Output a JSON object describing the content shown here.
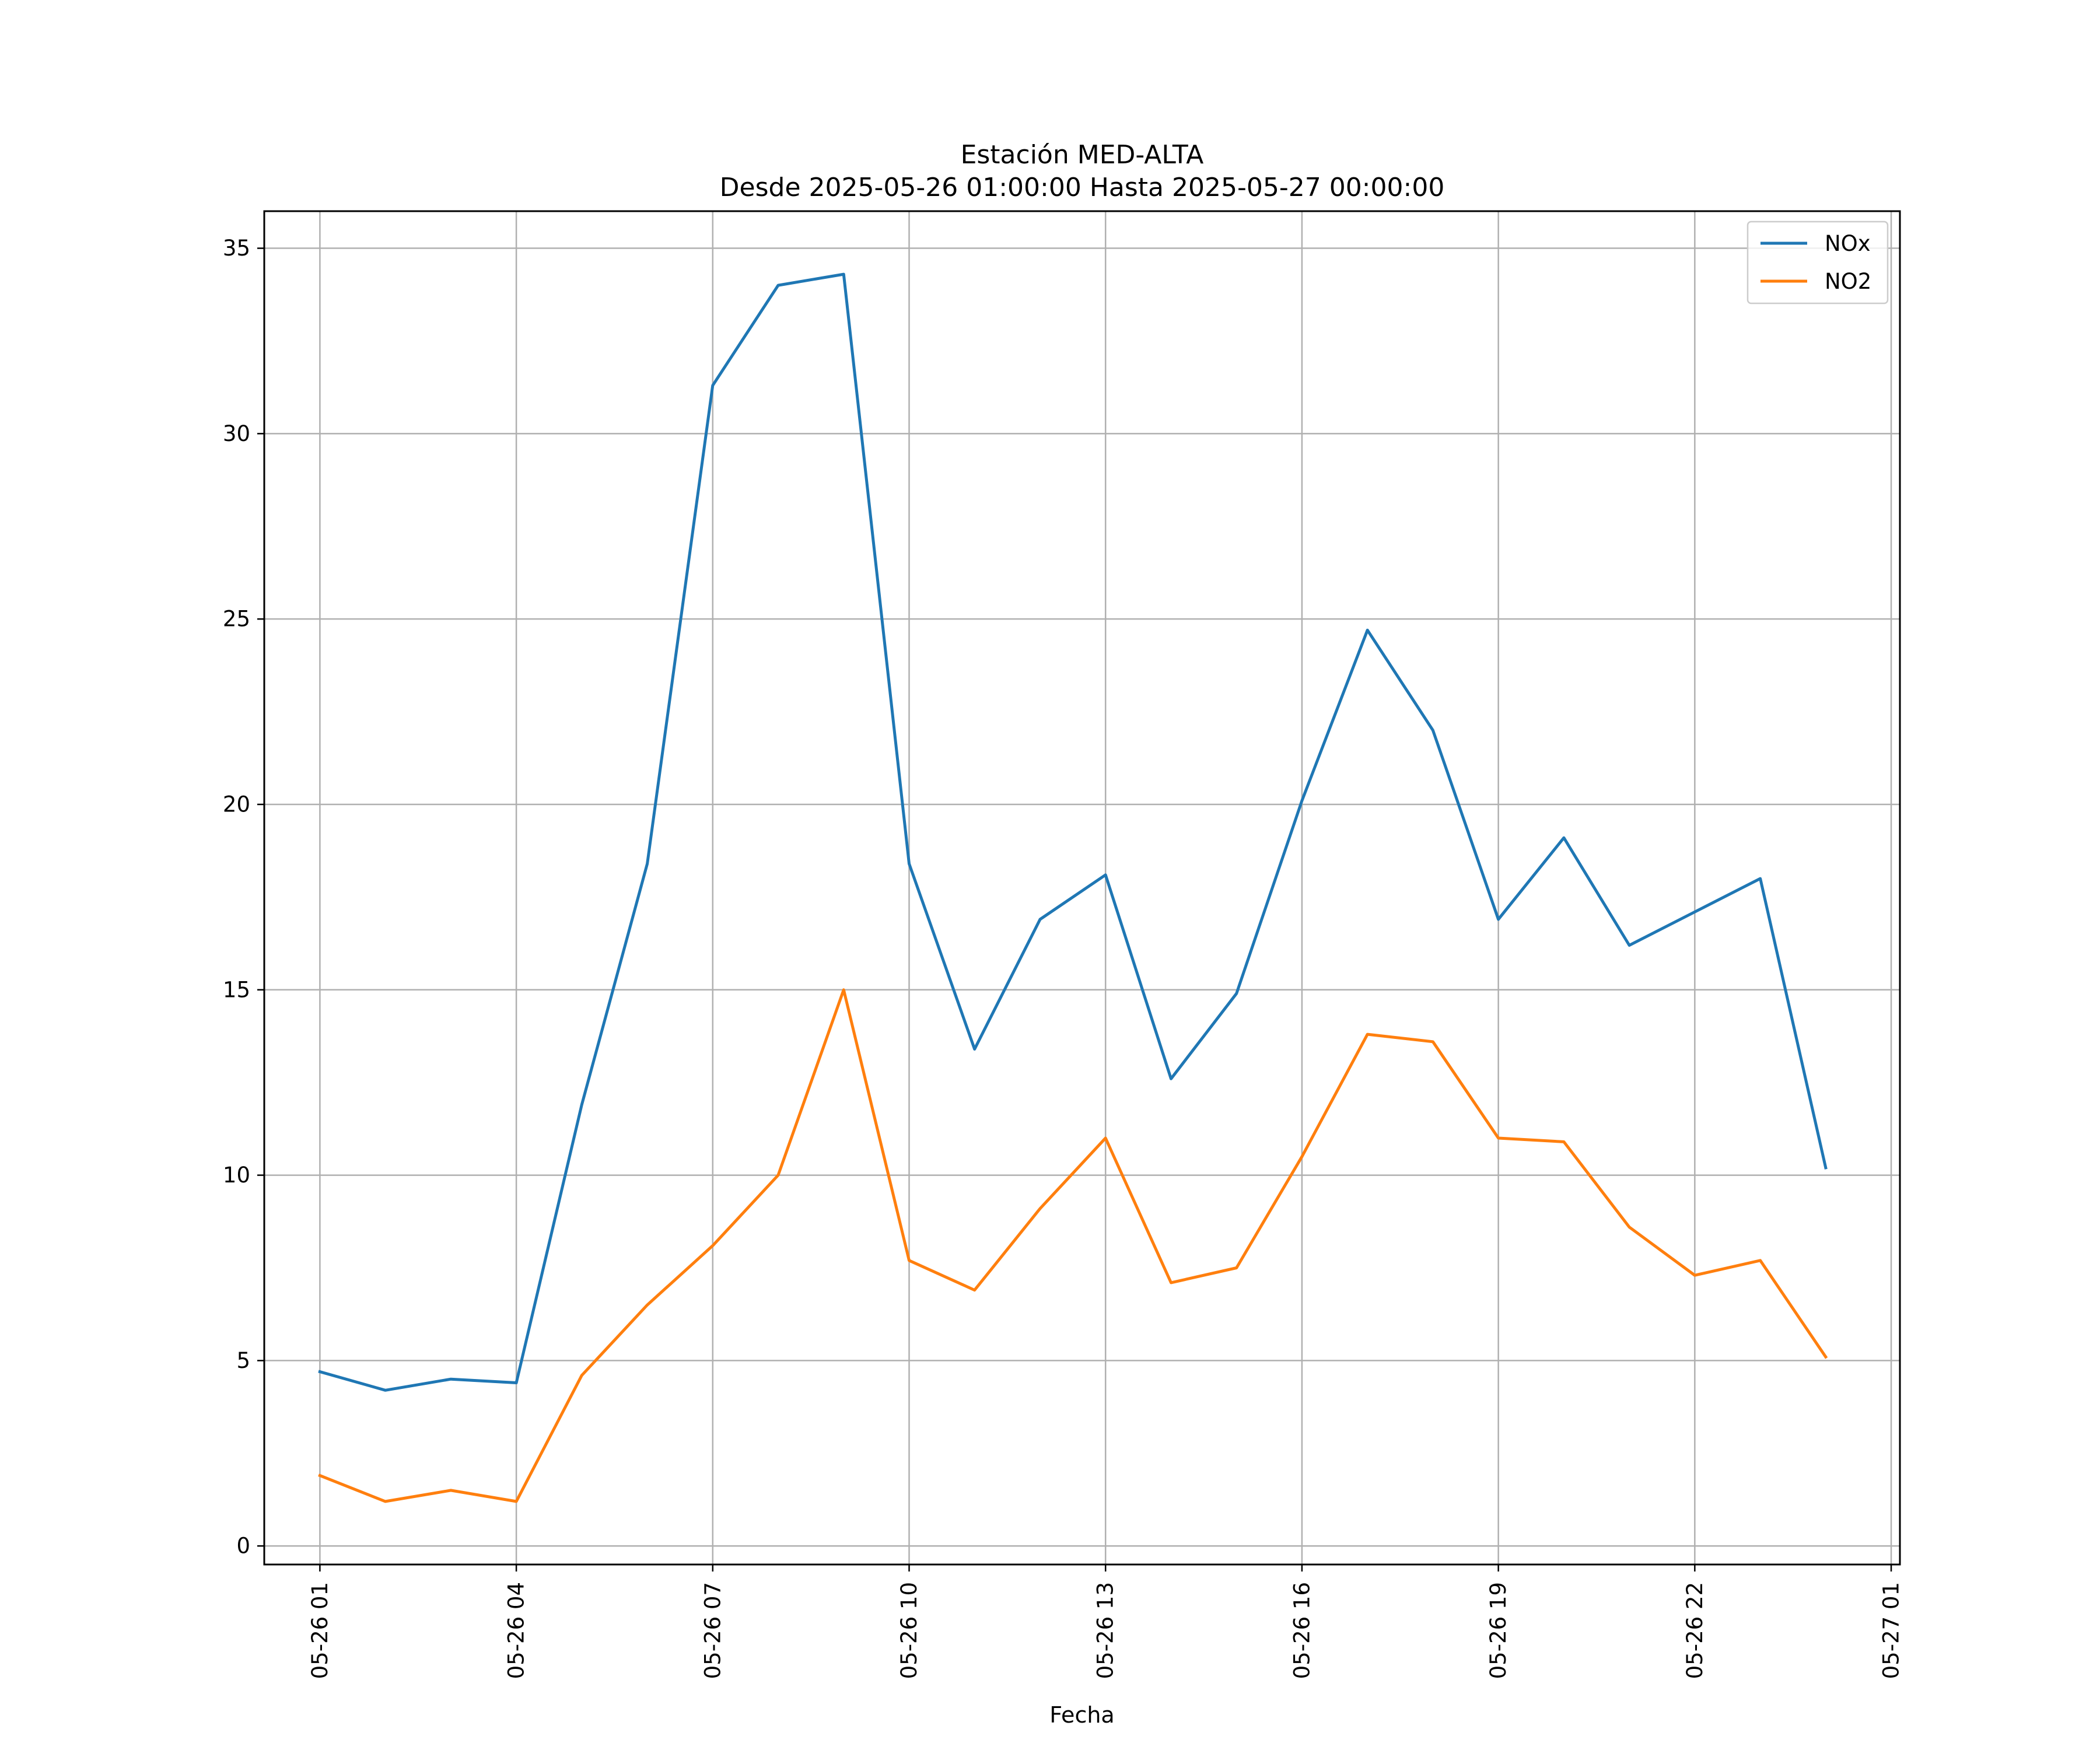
{
  "chart_data": {
    "type": "line",
    "title": "Estación MED-ALTA",
    "subtitle": "Desde 2025-05-26 01:00:00 Hasta 2025-05-27 00:00:00",
    "xlabel": "Fecha",
    "ylabel": "",
    "x": [
      "2025-05-26 01:00",
      "2025-05-26 02:00",
      "2025-05-26 03:00",
      "2025-05-26 04:00",
      "2025-05-26 05:00",
      "2025-05-26 06:00",
      "2025-05-26 07:00",
      "2025-05-26 08:00",
      "2025-05-26 09:00",
      "2025-05-26 10:00",
      "2025-05-26 11:00",
      "2025-05-26 12:00",
      "2025-05-26 13:00",
      "2025-05-26 14:00",
      "2025-05-26 15:00",
      "2025-05-26 16:00",
      "2025-05-26 17:00",
      "2025-05-26 18:00",
      "2025-05-26 19:00",
      "2025-05-26 20:00",
      "2025-05-26 21:00",
      "2025-05-26 22:00",
      "2025-05-26 23:00",
      "2025-05-27 00:00"
    ],
    "series": [
      {
        "name": "NOx",
        "color": "#1f77b4",
        "values": [
          4.7,
          4.2,
          4.5,
          4.4,
          11.9,
          18.4,
          31.3,
          34.0,
          34.3,
          18.4,
          13.4,
          16.9,
          18.1,
          12.6,
          14.9,
          20.1,
          24.7,
          22.0,
          16.9,
          19.1,
          16.2,
          17.1,
          18.0,
          10.2
        ]
      },
      {
        "name": "NO2",
        "color": "#ff7f0e",
        "values": [
          1.9,
          1.2,
          1.5,
          1.2,
          4.6,
          6.5,
          8.1,
          10.0,
          15.0,
          7.7,
          6.9,
          9.1,
          11.0,
          7.1,
          7.5,
          10.5,
          13.8,
          13.6,
          11.0,
          10.9,
          8.6,
          7.3,
          7.7,
          5.1
        ]
      }
    ],
    "x_ticks": [
      "05-26 01",
      "05-26 04",
      "05-26 07",
      "05-26 10",
      "05-26 13",
      "05-26 16",
      "05-26 19",
      "05-26 22",
      "05-27 01"
    ],
    "y_ticks": [
      "0",
      "5",
      "10",
      "15",
      "20",
      "25",
      "30",
      "35"
    ],
    "y_tick_values": [
      0,
      5,
      10,
      15,
      20,
      25,
      30,
      35
    ],
    "ylim": [
      -0.5,
      36.0
    ],
    "xlim": [
      "2025-05-26 00:09",
      "2025-05-27 01:08"
    ],
    "grid": true,
    "legend_position": "top-right"
  }
}
